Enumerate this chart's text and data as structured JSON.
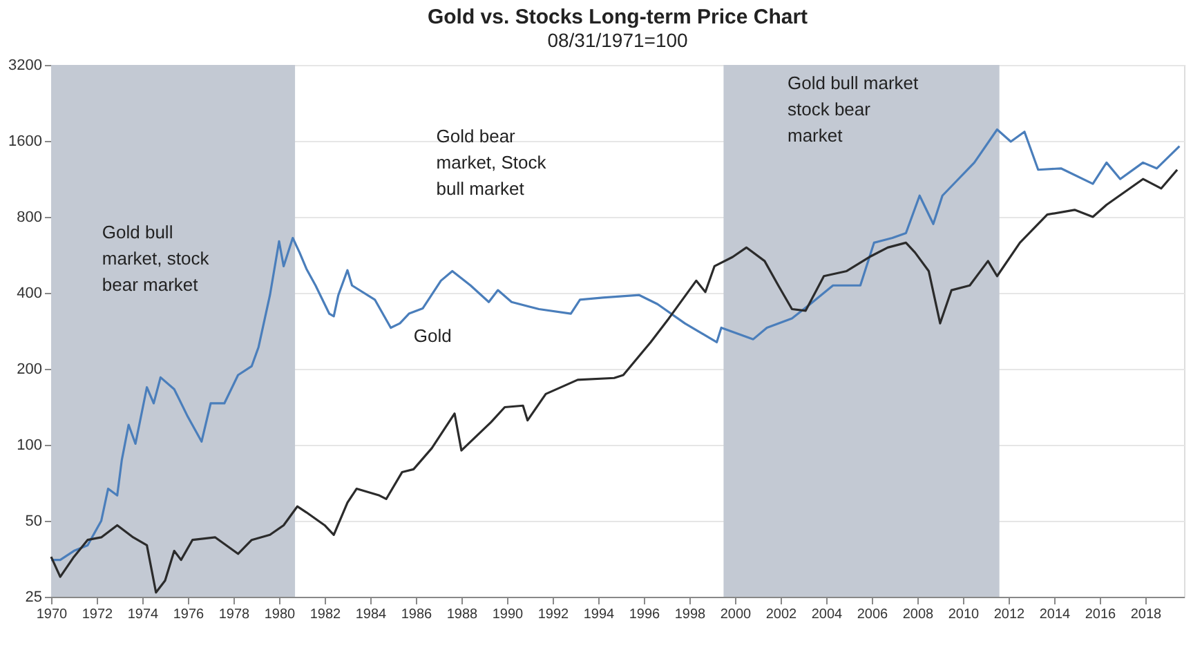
{
  "chart_data": {
    "type": "line",
    "title": "Gold vs. Stocks Long-term Price Chart",
    "subtitle": "08/31/1971=100",
    "x": [
      1970.0,
      1970.4,
      1971.0,
      1971.6,
      1972.2,
      1972.5,
      1972.9,
      1973.1,
      1973.4,
      1973.7,
      1974.2,
      1974.5,
      1974.8,
      1975.4,
      1976.0,
      1976.6,
      1977.0,
      1977.6,
      1978.2,
      1978.8,
      1979.1,
      1979.6,
      1980.0,
      1980.2,
      1980.6,
      1980.9,
      1981.2,
      1981.6,
      1982.2,
      1982.4,
      1982.6,
      1983.0,
      1983.2,
      1984.2,
      1984.9,
      1985.3,
      1985.7,
      1986.3,
      1987.1,
      1987.6,
      1988.4,
      1989.2,
      1989.6,
      1990.2,
      1991.4,
      1992.8,
      1993.2,
      1994.2,
      1995.8,
      1996.6,
      1997.8,
      1999.2,
      1999.4,
      2000.8,
      2001.4,
      2002.5,
      2003.3,
      2004.3,
      2005.5,
      2006.1,
      2006.9,
      2007.5,
      2008.1,
      2008.7,
      2009.1,
      2009.7,
      2010.5,
      2011.5,
      2012.1,
      2012.7,
      2013.3,
      2014.3,
      2015.7,
      2016.3,
      2016.9,
      2017.9,
      2018.5,
      2019.5
    ],
    "series": [
      {
        "name": "Gold",
        "color": "#4a7ebb",
        "values": [
          35,
          35,
          38,
          40,
          50,
          67,
          63,
          87,
          120,
          101,
          169,
          146,
          185,
          166,
          129,
          103,
          146,
          146,
          189,
          205,
          244,
          392,
          640,
          510,
          660,
          578,
          498,
          428,
          331,
          323,
          392,
          492,
          428,
          376,
          291,
          303,
          331,
          347,
          447,
          488,
          428,
          368,
          410,
          368,
          345,
          331,
          376,
          383,
          392,
          361,
          303,
          255,
          291,
          262,
          291,
          317,
          361,
          428,
          428,
          632,
          660,
          690,
          971,
          750,
          971,
          1105,
          1313,
          1775,
          1590,
          1740,
          1230,
          1245,
          1082,
          1313,
          1130,
          1313,
          1245,
          1525
        ]
      },
      {
        "color": "#2b2b2b",
        "x": [
          1970.0,
          1970.4,
          1971.0,
          1971.6,
          1972.2,
          1972.9,
          1973.6,
          1974.2,
          1974.6,
          1975.0,
          1975.4,
          1975.7,
          1976.2,
          1977.2,
          1978.2,
          1978.8,
          1979.6,
          1980.2,
          1980.8,
          1981.2,
          1982.0,
          1982.4,
          1983.0,
          1983.4,
          1984.4,
          1984.7,
          1985.4,
          1985.9,
          1986.7,
          1987.7,
          1988.0,
          1989.3,
          1989.9,
          1990.7,
          1990.9,
          1991.7,
          1993.1,
          1994.7,
          1995.1,
          1996.3,
          1997.1,
          1998.3,
          1998.7,
          1999.1,
          1999.9,
          2000.5,
          2001.3,
          2001.9,
          2002.5,
          2003.1,
          2003.9,
          2004.9,
          2005.9,
          2006.7,
          2007.5,
          2007.9,
          2008.5,
          2009.0,
          2009.5,
          2010.3,
          2011.1,
          2011.5,
          2012.5,
          2013.7,
          2014.9,
          2015.7,
          2016.3,
          2017.9,
          2018.7,
          2019.4
        ],
        "values": [
          36,
          30,
          36,
          42,
          43,
          48,
          43,
          40,
          26,
          29,
          38,
          35,
          42,
          43,
          37,
          42,
          44,
          48,
          57,
          54,
          48,
          44,
          59,
          67,
          63,
          61,
          78,
          80,
          97,
          133,
          95,
          123,
          141,
          143,
          125,
          159,
          181,
          184,
          189,
          255,
          317,
          447,
          403,
          510,
          555,
          605,
          535,
          428,
          345,
          340,
          466,
          488,
          555,
          605,
          632,
          578,
          488,
          303,
          410,
          428,
          535,
          466,
          632,
          817,
          853,
          800,
          893,
          1130,
          1037,
          1230
        ]
      }
    ],
    "log": "y",
    "xlim": [
      1970,
      2019.7
    ],
    "xticks": [
      1970,
      1972,
      1974,
      1976,
      1978,
      1980,
      1982,
      1984,
      1986,
      1988,
      1990,
      1992,
      1994,
      1996,
      1998,
      2000,
      2002,
      2004,
      2006,
      2008,
      2010,
      2012,
      2014,
      2016,
      2018
    ],
    "ylim": [
      25,
      3200
    ],
    "yticks": [
      25,
      50,
      100,
      200,
      400,
      800,
      1600,
      3200
    ],
    "grid": "y",
    "bands": [
      {
        "axis": "x",
        "from": 1970,
        "to": 1980.7,
        "color": "#c3c9d3"
      },
      {
        "axis": "x",
        "from": 1999.5,
        "to": 2011.6,
        "color": "#c3c9d3"
      }
    ],
    "annotations": [
      "Gold bull\nmarket, stock\nbear market",
      "Gold bear\nmarket, Stock\nbull market",
      "Gold bull market\nstock bear\nmarket"
    ]
  }
}
